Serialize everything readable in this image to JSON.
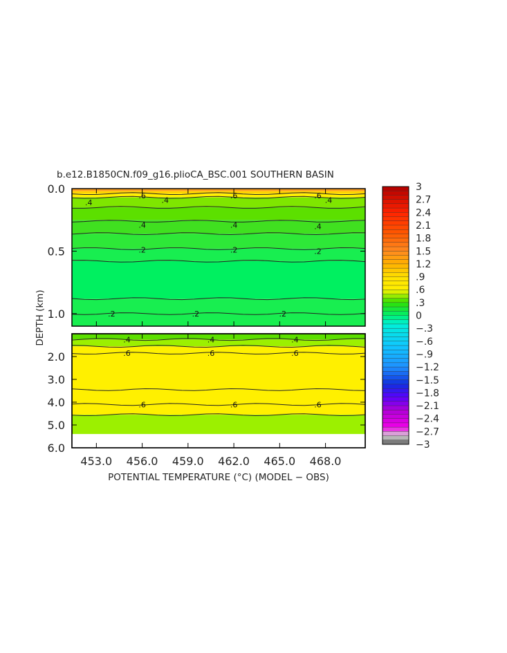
{
  "chart_data": {
    "type": "heatmap",
    "title": "b.e12.B1850CN.f09_g16.plioCA_BSC.001 SOUTHERN BASIN",
    "xlabel": "POTENTIAL TEMPERATURE (°C) (MODEL − OBS)",
    "ylabel": "DEPTH (km)",
    "x_ticks": [
      "453.0",
      "456.0",
      "459.0",
      "462.0",
      "465.0",
      "468.0"
    ],
    "x_tick_values": [
      453,
      456,
      459,
      462,
      465,
      468
    ],
    "xlim": [
      451.4,
      470.6
    ],
    "upper_panel": {
      "ylim": [
        0.0,
        1.1
      ],
      "y_ticks": [
        "0.0",
        "0.5",
        "1.0"
      ],
      "y_tick_values": [
        0.0,
        0.5,
        1.0
      ],
      "layers": [
        {
          "top": 0.0,
          "bottom": 0.02,
          "value": 1.2
        },
        {
          "top": 0.02,
          "bottom": 0.04,
          "value": 0.9
        },
        {
          "top": 0.04,
          "bottom": 0.07,
          "value": 0.7
        },
        {
          "top": 0.07,
          "bottom": 0.15,
          "value": 0.4
        },
        {
          "top": 0.15,
          "bottom": 0.25,
          "value": 0.35
        },
        {
          "top": 0.25,
          "bottom": 0.36,
          "value": 0.3
        },
        {
          "top": 0.36,
          "bottom": 0.48,
          "value": 0.25
        },
        {
          "top": 0.48,
          "bottom": 0.58,
          "value": 0.2
        },
        {
          "top": 0.58,
          "bottom": 0.88,
          "value": 0.15
        },
        {
          "top": 0.88,
          "bottom": 1.1,
          "value": 0.2
        }
      ],
      "contour_lines": [
        0.04,
        0.07,
        0.15,
        0.26,
        0.36,
        0.48,
        0.58,
        0.88,
        1.0
      ],
      "contour_labels": [
        {
          "text": ".6",
          "x": 456.0,
          "depth": 0.055
        },
        {
          "text": ".6",
          "x": 462.0,
          "depth": 0.055
        },
        {
          "text": ".6",
          "x": 467.5,
          "depth": 0.055
        },
        {
          "text": ".4",
          "x": 452.5,
          "depth": 0.11
        },
        {
          "text": ".4",
          "x": 457.5,
          "depth": 0.09
        },
        {
          "text": ".4",
          "x": 468.2,
          "depth": 0.09
        },
        {
          "text": ".4",
          "x": 456.0,
          "depth": 0.29
        },
        {
          "text": ".4",
          "x": 462.0,
          "depth": 0.29
        },
        {
          "text": ".4",
          "x": 467.5,
          "depth": 0.3
        },
        {
          "text": ".2",
          "x": 456.0,
          "depth": 0.49
        },
        {
          "text": ".2",
          "x": 462.0,
          "depth": 0.49
        },
        {
          "text": ".2",
          "x": 467.5,
          "depth": 0.5
        },
        {
          "text": ".2",
          "x": 454.0,
          "depth": 1.0
        },
        {
          "text": ".2",
          "x": 459.5,
          "depth": 1.0
        },
        {
          "text": ".2",
          "x": 465.2,
          "depth": 1.0
        }
      ]
    },
    "lower_panel": {
      "ylim": [
        1.0,
        6.0
      ],
      "y_ticks": [
        "2.0",
        "3.0",
        "4.0",
        "5.0",
        "6.0"
      ],
      "y_tick_values": [
        2.0,
        3.0,
        4.0,
        5.0,
        6.0
      ],
      "data_bottom": 5.4,
      "layers": [
        {
          "top": 1.0,
          "bottom": 1.25,
          "value": 0.35
        },
        {
          "top": 1.25,
          "bottom": 1.55,
          "value": 0.45
        },
        {
          "top": 1.55,
          "bottom": 3.45,
          "value": 0.7
        },
        {
          "top": 3.45,
          "bottom": 4.55,
          "value": 0.65
        },
        {
          "top": 4.55,
          "bottom": 5.4,
          "value": 0.5
        }
      ],
      "contour_lines": [
        1.25,
        1.55,
        1.85,
        3.45,
        4.1,
        4.55
      ],
      "contour_labels": [
        {
          "text": ".4",
          "x": 455.0,
          "depth": 1.25
        },
        {
          "text": ".4",
          "x": 460.5,
          "depth": 1.25
        },
        {
          "text": ".4",
          "x": 466.0,
          "depth": 1.25
        },
        {
          "text": ".6",
          "x": 455.0,
          "depth": 1.85
        },
        {
          "text": ".6",
          "x": 460.5,
          "depth": 1.85
        },
        {
          "text": ".6",
          "x": 466.0,
          "depth": 1.85
        },
        {
          "text": ".6",
          "x": 456.0,
          "depth": 4.1
        },
        {
          "text": ".6",
          "x": 462.0,
          "depth": 4.1
        },
        {
          "text": ".6",
          "x": 467.5,
          "depth": 4.1
        }
      ]
    },
    "colorbar": {
      "vmin": -3,
      "vmax": 3,
      "step": 0.1,
      "tick_labels": [
        "3",
        "2.7",
        "2.4",
        "2.1",
        "1.8",
        "1.5",
        "1.2",
        ".9",
        ".6",
        ".3",
        "0",
        "−.3",
        "−.6",
        "−.9",
        "−1.2",
        "−1.5",
        "−1.8",
        "−2.1",
        "−2.4",
        "−2.7",
        "−3"
      ],
      "tick_values": [
        3,
        2.7,
        2.4,
        2.1,
        1.8,
        1.5,
        1.2,
        0.9,
        0.6,
        0.3,
        0,
        -0.3,
        -0.6,
        -0.9,
        -1.2,
        -1.5,
        -1.8,
        -2.1,
        -2.4,
        -2.7,
        -3
      ]
    }
  }
}
